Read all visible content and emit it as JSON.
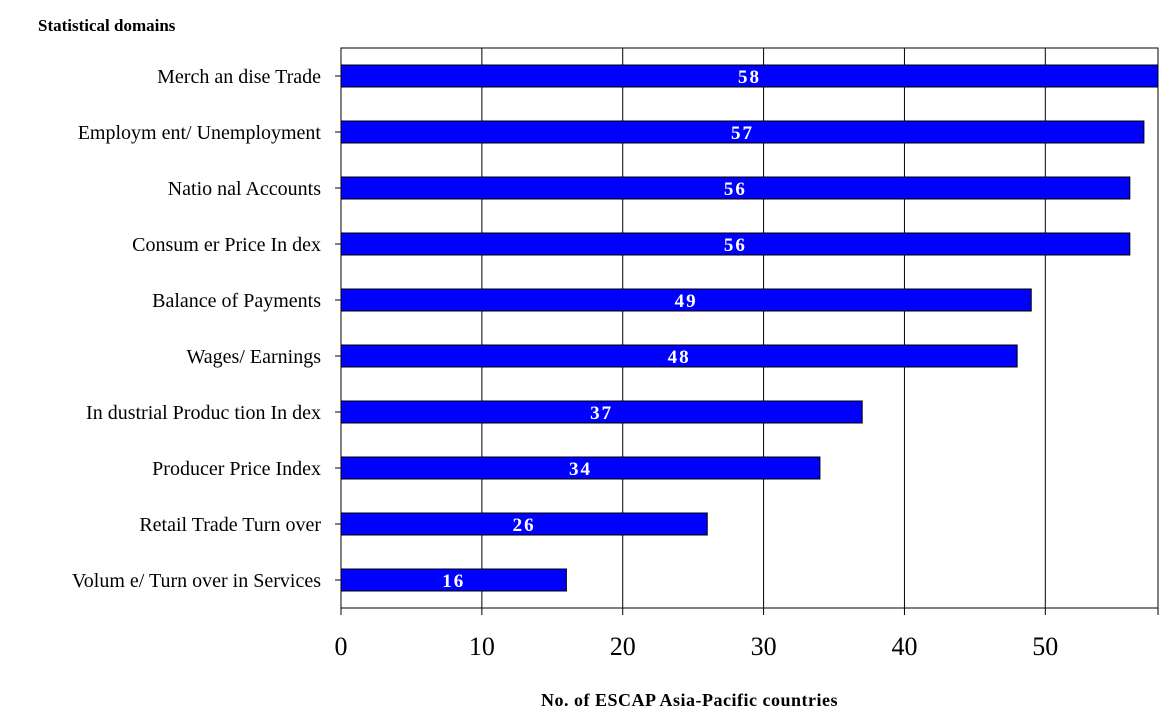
{
  "chart_data": {
    "type": "bar",
    "orientation": "horizontal",
    "title": "",
    "ylabel": "Statistical domains",
    "xlabel": "No. of ESCAP Asia-Pacific countries",
    "categories": [
      "Merch an dise Trade",
      "Employm ent/ Unemployment",
      "Natio nal Accounts",
      "Consum er Price In dex",
      "Balance of Payments",
      "Wages/ Earnings",
      "In dustrial Produc tion In dex",
      "Producer Price Index",
      "Retail Trade Turn over",
      "Volum e/ Turn over in Services"
    ],
    "values": [
      58,
      57,
      56,
      56,
      49,
      48,
      37,
      34,
      26,
      16
    ],
    "xlim": [
      0,
      58
    ],
    "xticks": [
      0,
      10,
      20,
      30,
      40,
      50
    ],
    "grid": true,
    "bar_color": "#0000ff",
    "label_color": "#ffffff"
  }
}
